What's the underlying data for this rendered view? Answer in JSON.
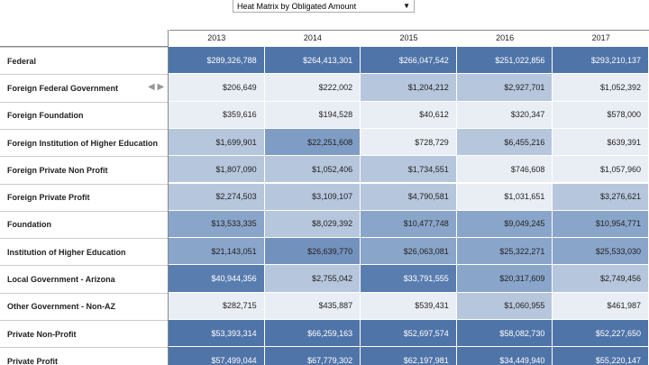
{
  "dropdown": {
    "label": "Heat Matrix by Obligated Amount"
  },
  "table": {
    "columns": [
      "2013",
      "2014",
      "2015",
      "2016",
      "2017"
    ],
    "rows": [
      {
        "label": "Federal",
        "cells": [
          "$289,326,788",
          "$264,413,301",
          "$266,047,542",
          "$251,022,856",
          "$293,210,137"
        ],
        "colors": [
          "#4f74a8",
          "#4f74a8",
          "#4f74a8",
          "#4f74a8",
          "#4f74a8"
        ]
      },
      {
        "label": "Foreign Federal Government",
        "cells": [
          "$206,649",
          "$222,002",
          "$1,204,212",
          "$2,927,701",
          "$1,052,392"
        ],
        "colors": [
          "#e9eef5",
          "#e9eef5",
          "#b6c6dc",
          "#b6c6dc",
          "#e9eef5"
        ]
      },
      {
        "label": "Foreign Foundation",
        "cells": [
          "$359,616",
          "$194,528",
          "$40,612",
          "$320,347",
          "$578,000"
        ],
        "colors": [
          "#e9eef5",
          "#e9eef5",
          "#e9eef5",
          "#e9eef5",
          "#e9eef5"
        ]
      },
      {
        "label": "Foreign Institution of Higher Education",
        "cells": [
          "$1,699,901",
          "$22,251,608",
          "$728,729",
          "$6,455,216",
          "$639,391"
        ],
        "colors": [
          "#b6c6dc",
          "#7f9cc4",
          "#e9eef5",
          "#b6c6dc",
          "#e9eef5"
        ]
      },
      {
        "label": "Foreign Private Non Profit",
        "cells": [
          "$1,807,090",
          "$1,052,406",
          "$1,734,551",
          "$746,608",
          "$1,057,960"
        ],
        "colors": [
          "#b6c6dc",
          "#b6c6dc",
          "#b6c6dc",
          "#e9eef5",
          "#e9eef5"
        ]
      },
      {
        "label": "Foreign Private Profit",
        "cells": [
          "$2,274,503",
          "$3,109,107",
          "$4,790,581",
          "$1,031,651",
          "$3,276,621"
        ],
        "colors": [
          "#b6c6dc",
          "#b6c6dc",
          "#b6c6dc",
          "#e9eef5",
          "#b6c6dc"
        ]
      },
      {
        "label": "Foundation",
        "cells": [
          "$13,533,335",
          "$8,029,392",
          "$10,477,748",
          "$9,049,245",
          "$10,954,771"
        ],
        "colors": [
          "#8aa5ca",
          "#b6c6dc",
          "#8aa5ca",
          "#8aa5ca",
          "#8aa5ca"
        ]
      },
      {
        "label": "Institution of Higher Education",
        "cells": [
          "$21,143,051",
          "$26,639,770",
          "$26,063,081",
          "$25,322,271",
          "$25,533,030"
        ],
        "colors": [
          "#8aa5ca",
          "#7391bd",
          "#8aa5ca",
          "#8aa5ca",
          "#8aa5ca"
        ]
      },
      {
        "label": "Local Government - Arizona",
        "cells": [
          "$40,944,356",
          "$2,755,042",
          "$33,791,555",
          "$20,317,609",
          "$2,749,456"
        ],
        "colors": [
          "#5a7db0",
          "#b6c6dc",
          "#5a7db0",
          "#8aa5ca",
          "#b6c6dc"
        ]
      },
      {
        "label": "Other Government - Non-AZ",
        "cells": [
          "$282,715",
          "$435,887",
          "$539,431",
          "$1,060,955",
          "$461,987"
        ],
        "colors": [
          "#e9eef5",
          "#e9eef5",
          "#e9eef5",
          "#b6c6dc",
          "#e9eef5"
        ]
      },
      {
        "label": "Private Non-Profit",
        "cells": [
          "$53,393,314",
          "$66,259,163",
          "$52,697,574",
          "$58,082,730",
          "$52,227,650"
        ],
        "colors": [
          "#4f74a8",
          "#4f74a8",
          "#4f74a8",
          "#4f74a8",
          "#4f74a8"
        ]
      },
      {
        "label": "Private Profit",
        "cells": [
          "$57,499,044",
          "$67,779,302",
          "$62,197,981",
          "$34,449,940",
          "$55,220,147"
        ],
        "colors": [
          "#4f74a8",
          "#4f74a8",
          "#4f74a8",
          "#4f74a8",
          "#4f74a8"
        ]
      }
    ]
  }
}
